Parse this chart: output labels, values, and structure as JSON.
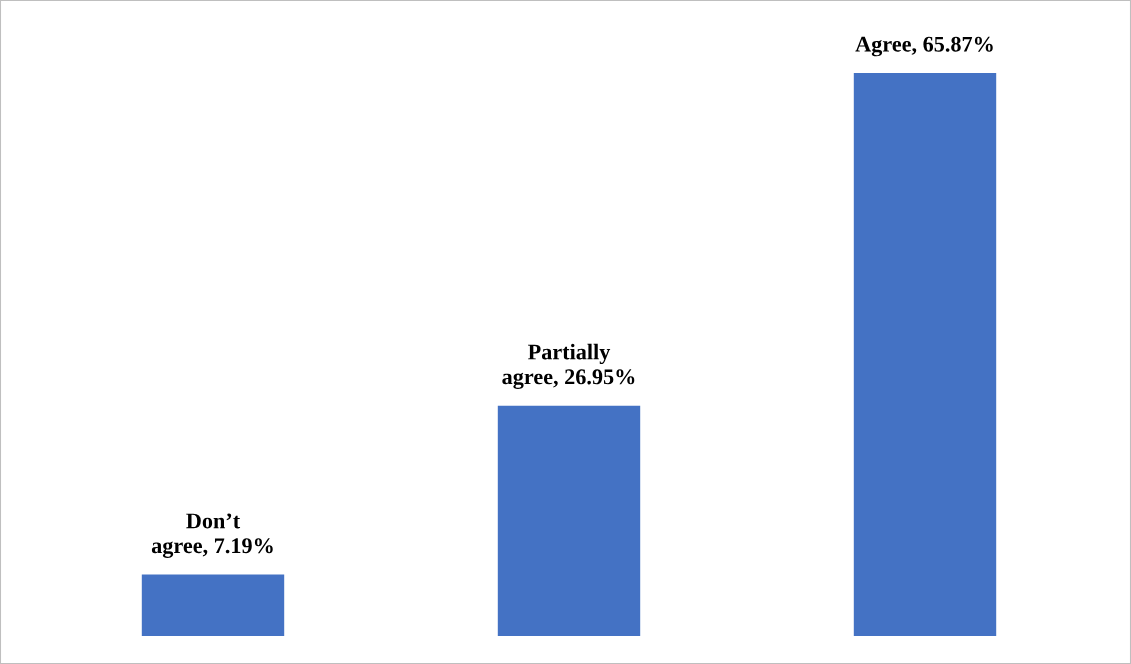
{
  "chart_data": {
    "type": "bar",
    "categories": [
      null,
      null,
      null
    ],
    "values": [
      7.19,
      26.95,
      65.87
    ],
    "color": "#4472c4",
    "value_labels": [
      "Don’t\nagree, 7.19%",
      "Partially\nagree, 26.95%",
      "Agree, 65.87%"
    ],
    "grid": false,
    "legend": false
  }
}
